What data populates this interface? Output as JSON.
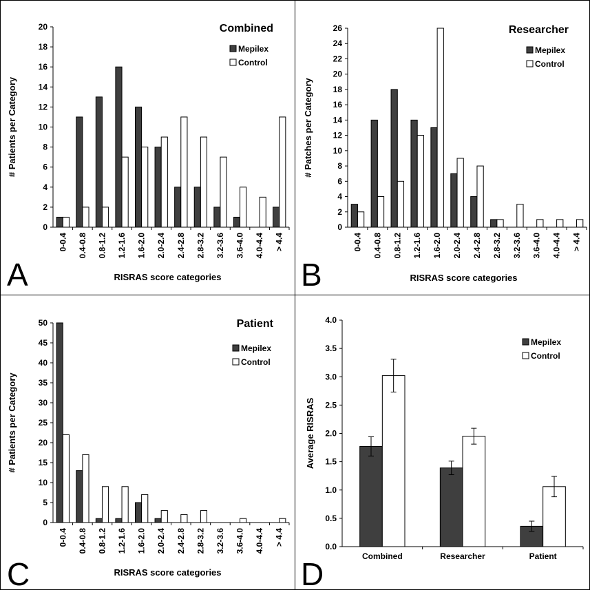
{
  "colors": {
    "mepilex": "#3f3f3f",
    "control": "#ffffff",
    "bar_stroke": "#000000"
  },
  "chart_data": [
    {
      "type": "bar",
      "panel": "A",
      "title": "Combined",
      "xlabel": "RISRAS  score categories",
      "ylabel": "# Patients per Category",
      "ylim": [
        0,
        20
      ],
      "yticks": [
        0,
        2,
        4,
        6,
        8,
        10,
        12,
        14,
        16,
        18,
        20
      ],
      "legend_position": "top-right",
      "categories": [
        "0-0.4",
        "0.4-0.8",
        "0.8-1.2",
        "1.2-1.6",
        "1.6-2.0",
        "2.0-2.4",
        "2.4-2.8",
        "2.8-3.2",
        "3.2-3.6",
        "3.6-4.0",
        "4.0-4.4",
        "> 4.4"
      ],
      "series": [
        {
          "name": "Mepilex",
          "color": "#3f3f3f",
          "values": [
            1,
            11,
            13,
            16,
            12,
            8,
            4,
            4,
            2,
            1,
            0,
            2
          ]
        },
        {
          "name": "Control",
          "color": "#ffffff",
          "values": [
            1,
            2,
            2,
            7,
            8,
            9,
            11,
            9,
            7,
            4,
            3,
            11
          ]
        }
      ]
    },
    {
      "type": "bar",
      "panel": "B",
      "title": "Researcher",
      "xlabel": "RISRAS  score categories",
      "ylabel": "# Patches per Category",
      "ylim": [
        0,
        26
      ],
      "yticks": [
        0,
        2,
        4,
        6,
        8,
        10,
        12,
        14,
        16,
        18,
        20,
        22,
        24,
        26
      ],
      "legend_position": "top-right",
      "categories": [
        "0-0.4",
        "0.4-0.8",
        "0.8-1.2",
        "1.2-1.6",
        "1.6-2.0",
        "2.0-2.4",
        "2.4-2.8",
        "2.8-3.2",
        "3.2-3.6",
        "3.6-4.0",
        "4.0-4.4",
        "> 4.4"
      ],
      "series": [
        {
          "name": "Mepilex",
          "color": "#3f3f3f",
          "values": [
            3,
            14,
            18,
            14,
            13,
            7,
            4,
            1,
            0,
            0,
            0,
            0
          ]
        },
        {
          "name": "Control",
          "color": "#ffffff",
          "values": [
            2,
            4,
            6,
            12,
            26,
            9,
            8,
            1,
            3,
            1,
            1,
            1
          ]
        }
      ]
    },
    {
      "type": "bar",
      "panel": "C",
      "title": "Patient",
      "xlabel": "RISRAS  score categories",
      "ylabel": "# Patients per Category",
      "ylim": [
        0,
        50
      ],
      "yticks": [
        0,
        5,
        10,
        15,
        20,
        25,
        30,
        35,
        40,
        45,
        50
      ],
      "legend_position": "top-right",
      "categories": [
        "0-0.4",
        "0.4-0.8",
        "0.8-1.2",
        "1.2-1.6",
        "1.6-2.0",
        "2.0-2.4",
        "2.4-2.8",
        "2.8-3.2",
        "3.2-3.6",
        "3.6-4.0",
        "4.0-4.4",
        "> 4.4"
      ],
      "series": [
        {
          "name": "Mepilex",
          "color": "#3f3f3f",
          "values": [
            50,
            13,
            1,
            1,
            5,
            1,
            0,
            0,
            0,
            0,
            0,
            0
          ]
        },
        {
          "name": "Control",
          "color": "#ffffff",
          "values": [
            22,
            17,
            9,
            9,
            7,
            3,
            2,
            3,
            0,
            1,
            0,
            1
          ]
        }
      ]
    },
    {
      "type": "bar",
      "panel": "D",
      "title": "",
      "xlabel": "",
      "ylabel": "Average RISRAS",
      "ylim": [
        0,
        4
      ],
      "yticks": [
        "0.0",
        "0.5",
        "1.0",
        "1.5",
        "2.0",
        "2.5",
        "3.0",
        "3.5",
        "4.0"
      ],
      "legend_position": "top-right",
      "error_bars": true,
      "categories": [
        "Combined",
        "Researcher",
        "Patient"
      ],
      "series": [
        {
          "name": "Mepilex",
          "color": "#3f3f3f",
          "values": [
            1.77,
            1.39,
            0.36
          ],
          "errors": [
            0.17,
            0.12,
            0.09
          ]
        },
        {
          "name": "Control",
          "color": "#ffffff",
          "values": [
            3.02,
            1.95,
            1.06
          ],
          "errors": [
            0.29,
            0.14,
            0.18
          ]
        }
      ]
    }
  ]
}
